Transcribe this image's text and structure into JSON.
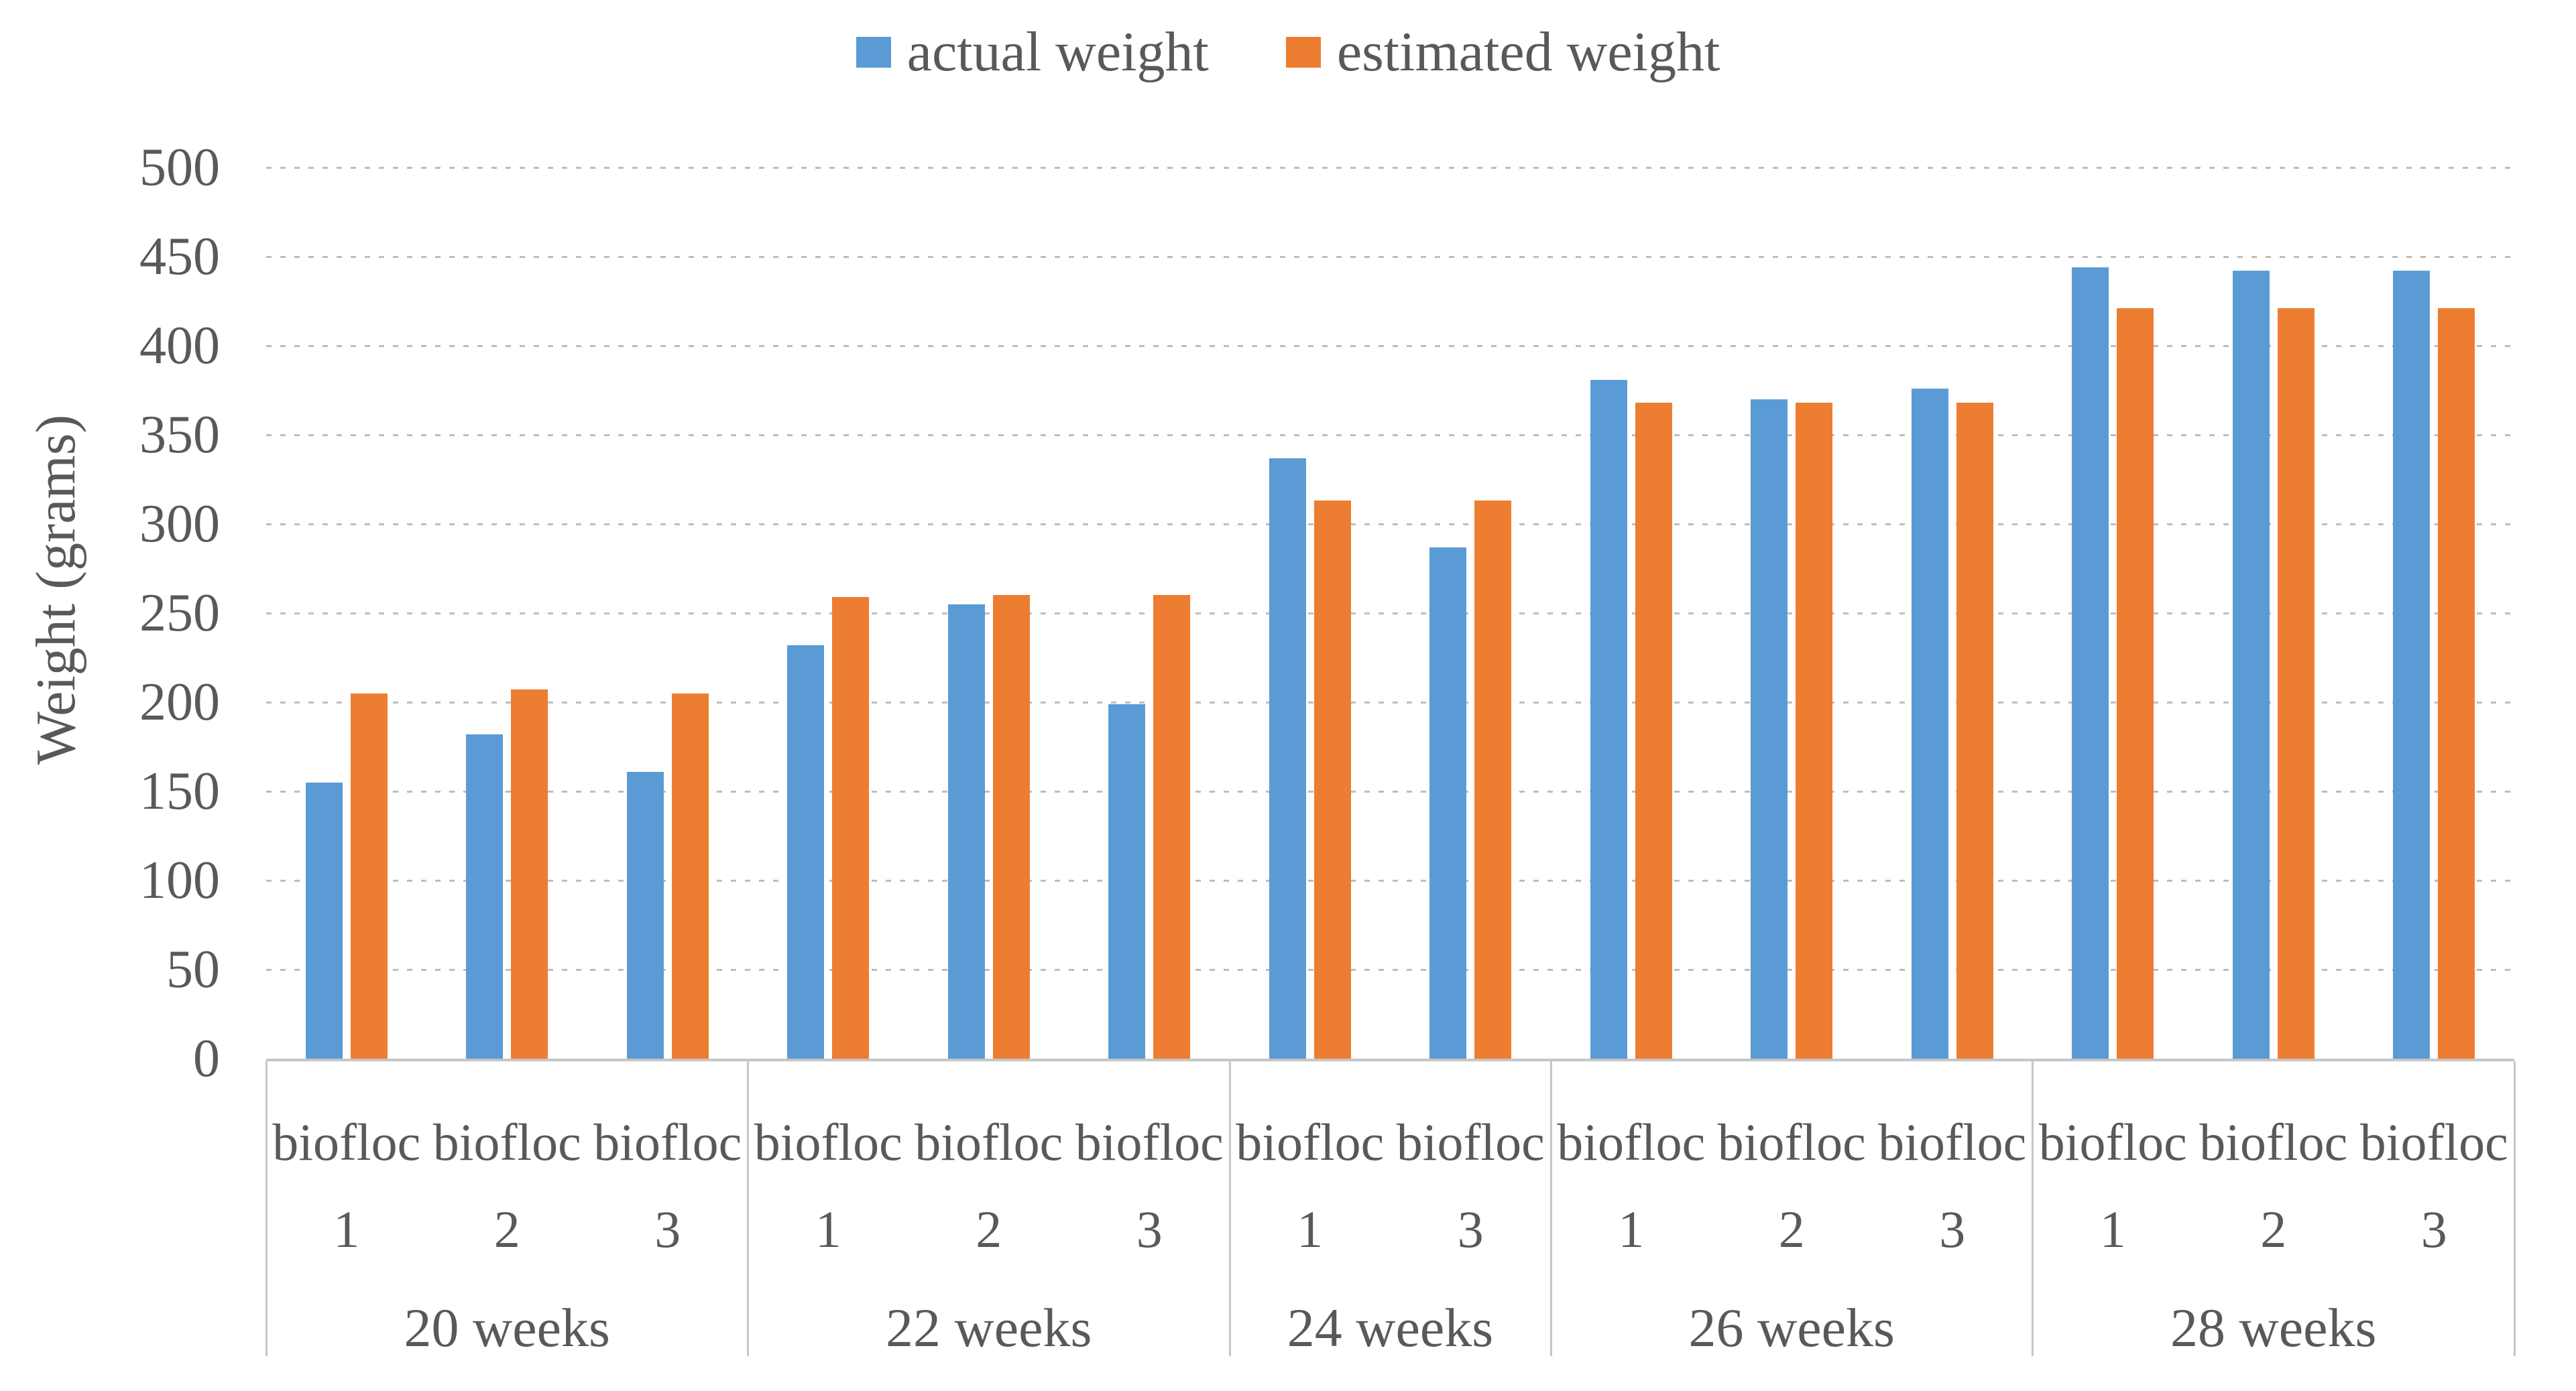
{
  "chart_data": {
    "type": "bar",
    "title": "",
    "xlabel": "",
    "ylabel": "Weight (grams)",
    "ylim": [
      0,
      500
    ],
    "ytick_step": 50,
    "grid": "horizontal-dashed",
    "legend_position": "top-center",
    "colors": {
      "actual": "#5B9BD5",
      "estimated": "#ED7D31",
      "gridline": "#BDBDBD",
      "axis_line": "#C6C6C6",
      "text": "#595959"
    },
    "series": [
      {
        "name": "actual weight",
        "color": "#5B9BD5"
      },
      {
        "name": "estimated weight",
        "color": "#ED7D31"
      }
    ],
    "groups": [
      {
        "label": "20 weeks",
        "categories": [
          {
            "label_top": "biofloc",
            "label_bottom": "1",
            "values": [
              155,
              205
            ]
          },
          {
            "label_top": "biofloc",
            "label_bottom": "2",
            "values": [
              182,
              207
            ]
          },
          {
            "label_top": "biofloc",
            "label_bottom": "3",
            "values": [
              161,
              205
            ]
          }
        ]
      },
      {
        "label": "22 weeks",
        "categories": [
          {
            "label_top": "biofloc",
            "label_bottom": "1",
            "values": [
              232,
              259
            ]
          },
          {
            "label_top": "biofloc",
            "label_bottom": "2",
            "values": [
              255,
              260
            ]
          },
          {
            "label_top": "biofloc",
            "label_bottom": "3",
            "values": [
              199,
              260
            ]
          }
        ]
      },
      {
        "label": "24 weeks",
        "categories": [
          {
            "label_top": "biofloc",
            "label_bottom": "1",
            "values": [
              337,
              313
            ]
          },
          {
            "label_top": "biofloc",
            "label_bottom": "3",
            "values": [
              287,
              313
            ]
          }
        ]
      },
      {
        "label": "26 weeks",
        "categories": [
          {
            "label_top": "biofloc",
            "label_bottom": "1",
            "values": [
              381,
              368
            ]
          },
          {
            "label_top": "biofloc",
            "label_bottom": "2",
            "values": [
              370,
              368
            ]
          },
          {
            "label_top": "biofloc",
            "label_bottom": "3",
            "values": [
              376,
              368
            ]
          }
        ]
      },
      {
        "label": "28 weeks",
        "categories": [
          {
            "label_top": "biofloc",
            "label_bottom": "1",
            "values": [
              444,
              421
            ]
          },
          {
            "label_top": "biofloc",
            "label_bottom": "2",
            "values": [
              442,
              421
            ]
          },
          {
            "label_top": "biofloc",
            "label_bottom": "3",
            "values": [
              442,
              421
            ]
          }
        ]
      }
    ]
  }
}
